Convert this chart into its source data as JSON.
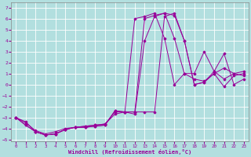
{
  "xlabel": "Windchill (Refroidissement éolien,°C)",
  "bg_color": "#b2dfdf",
  "grid_color": "#ffffff",
  "line_color": "#990099",
  "xlim": [
    -0.5,
    23.5
  ],
  "ylim": [
    -5.2,
    7.5
  ],
  "xticks": [
    0,
    1,
    2,
    3,
    4,
    5,
    6,
    7,
    8,
    9,
    10,
    11,
    12,
    13,
    14,
    15,
    16,
    17,
    18,
    19,
    20,
    21,
    22,
    23
  ],
  "yticks": [
    -5,
    -4,
    -3,
    -2,
    -1,
    0,
    1,
    2,
    3,
    4,
    5,
    6,
    7
  ],
  "series": [
    {
      "x": [
        0,
        1,
        2,
        3,
        4,
        5,
        6,
        7,
        8,
        9,
        10,
        11,
        12,
        13,
        14,
        15,
        16,
        17,
        18,
        19,
        20,
        21,
        22,
        23
      ],
      "y": [
        -3.0,
        -3.5,
        -4.2,
        -4.5,
        -4.3,
        -4.0,
        -3.9,
        -3.8,
        -3.7,
        -3.6,
        -2.7,
        -2.5,
        -2.5,
        -2.5,
        -2.5,
        6.2,
        6.5,
        4.0,
        0.0,
        0.2,
        1.0,
        -0.2,
        0.8,
        1.0
      ]
    },
    {
      "x": [
        0,
        1,
        2,
        3,
        4,
        5,
        6,
        7,
        8,
        9,
        10,
        11,
        12,
        13,
        14,
        15,
        16,
        17,
        18,
        19,
        20,
        21,
        22,
        23
      ],
      "y": [
        -3.0,
        -3.4,
        -4.3,
        -4.6,
        -4.5,
        -4.1,
        -3.9,
        -3.8,
        -3.7,
        -3.6,
        -2.5,
        -2.5,
        -2.7,
        4.0,
        6.2,
        6.5,
        6.3,
        4.0,
        0.0,
        0.2,
        1.2,
        2.8,
        0.0,
        0.5
      ]
    },
    {
      "x": [
        0,
        1,
        2,
        3,
        4,
        5,
        6,
        7,
        8,
        9,
        10,
        11,
        12,
        13,
        14,
        15,
        16,
        17,
        18,
        19,
        20,
        21,
        22,
        23
      ],
      "y": [
        -3.0,
        -3.7,
        -4.3,
        -4.6,
        -4.5,
        -4.1,
        -3.9,
        -3.9,
        -3.8,
        -3.7,
        -2.4,
        -2.5,
        6.0,
        6.2,
        6.5,
        4.2,
        0.0,
        1.0,
        1.0,
        3.0,
        1.2,
        0.5,
        1.0,
        1.2
      ]
    },
    {
      "x": [
        0,
        1,
        2,
        3,
        4,
        5,
        6,
        7,
        8,
        9,
        10,
        11,
        12,
        13,
        14,
        15,
        16,
        17,
        18,
        19,
        20,
        21,
        22,
        23
      ],
      "y": [
        -3.0,
        -3.7,
        -4.3,
        -4.6,
        -4.5,
        -4.1,
        -3.9,
        -3.9,
        -3.8,
        -3.7,
        -2.4,
        -2.5,
        -2.5,
        6.0,
        6.3,
        6.5,
        4.2,
        1.0,
        0.5,
        0.3,
        1.0,
        1.5,
        1.0,
        0.8
      ]
    }
  ]
}
